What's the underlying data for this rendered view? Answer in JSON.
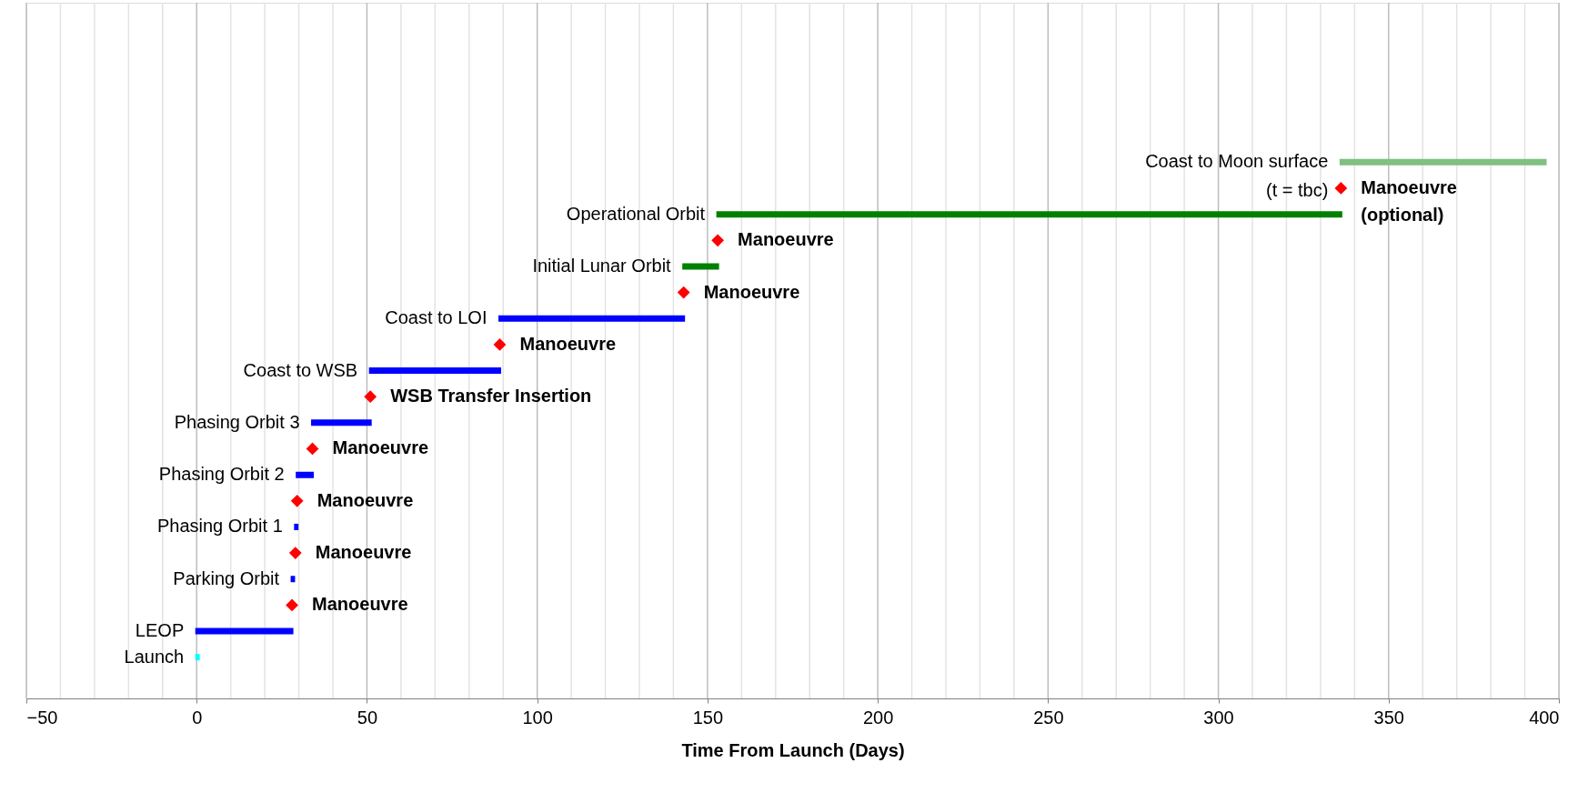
{
  "chart_data": {
    "type": "bar",
    "orientation": "horizontal",
    "xlabel": "Time From Launch (Days)",
    "categories": [
      "Coast to Moon surface\n(t = tbc)",
      "Manoeuvre\n(optional)",
      "Operational Orbit",
      "Manoeuvre",
      "Initial Lunar Orbit",
      "Manoeuvre",
      "Coast to LOI",
      "Manoeuvre",
      "Coast to WSB",
      "WSB Transfer Insertion",
      "Phasing Orbit 3",
      "Manoeuvre",
      "Phasing Orbit 2",
      "Manoeuvre",
      "Phasing Orbit 1",
      "Manoeuvre",
      "Parking Orbit",
      "Manoeuvre",
      "LEOP",
      "Launch"
    ],
    "series": [
      {
        "base": [
          336,
          null,
          153,
          null,
          143,
          null,
          89,
          null,
          51,
          null,
          34,
          null,
          29.5,
          null,
          29,
          null,
          28,
          null,
          0,
          0
        ],
        "values": [
          60,
          null,
          183,
          null,
          10,
          null,
          54,
          null,
          38,
          null,
          17,
          null,
          4.5,
          null,
          0.5,
          null,
          0.5,
          null,
          28,
          0.5
        ],
        "colors": [
          "#80c080",
          null,
          "#008000",
          null,
          "#008000",
          null,
          "#0000ff",
          null,
          "#0000ff",
          null,
          "#0000ff",
          null,
          "#0000ff",
          null,
          "#0000ff",
          null,
          "#0000ff",
          null,
          "#0000ff",
          "#00ffff"
        ]
      },
      {
        "type": "scatter",
        "marker": "diamond",
        "color": "#ff0000",
        "values": [
          null,
          336,
          null,
          153,
          null,
          143,
          null,
          89,
          null,
          51,
          null,
          34,
          null,
          29.5,
          null,
          29,
          null,
          28,
          null,
          null
        ]
      }
    ],
    "xlim": [
      -50,
      400
    ],
    "xticks": [
      -50,
      {
        "value": -40,
        "label": null
      },
      {
        "value": -30,
        "label": null
      },
      {
        "value": -20,
        "label": null
      },
      {
        "value": -10,
        "label": null
      },
      0,
      {
        "value": 10,
        "label": null
      },
      {
        "value": 20,
        "label": null
      },
      {
        "value": 30,
        "label": null
      },
      {
        "value": 40,
        "label": null
      },
      50,
      {
        "value": 60,
        "label": null
      },
      {
        "value": 70,
        "label": null
      },
      {
        "value": 80,
        "label": null
      },
      {
        "value": 90,
        "label": null
      },
      100,
      {
        "value": 110,
        "label": null
      },
      {
        "value": 120,
        "label": null
      },
      {
        "value": 130,
        "label": null
      },
      {
        "value": 140,
        "label": null
      },
      150,
      {
        "value": 160,
        "label": null
      },
      {
        "value": 170,
        "label": null
      },
      {
        "value": 180,
        "label": null
      },
      {
        "value": 190,
        "label": null
      },
      200,
      {
        "value": 210,
        "label": null
      },
      {
        "value": 220,
        "label": null
      },
      {
        "value": 230,
        "label": null
      },
      {
        "value": 240,
        "label": null
      },
      250,
      {
        "value": 260,
        "label": null
      },
      {
        "value": 270,
        "label": null
      },
      {
        "value": 280,
        "label": null
      },
      {
        "value": 290,
        "label": null
      },
      300,
      {
        "value": 310,
        "label": null
      },
      {
        "value": 320,
        "label": null
      },
      {
        "value": 330,
        "label": null
      },
      {
        "value": 340,
        "label": null
      },
      350,
      {
        "value": 360,
        "label": null
      },
      {
        "value": 370,
        "label": null
      },
      {
        "value": 380,
        "label": null
      },
      {
        "value": 390,
        "label": null
      },
      400
    ],
    "grid": "x",
    "tick_labels": "x"
  }
}
